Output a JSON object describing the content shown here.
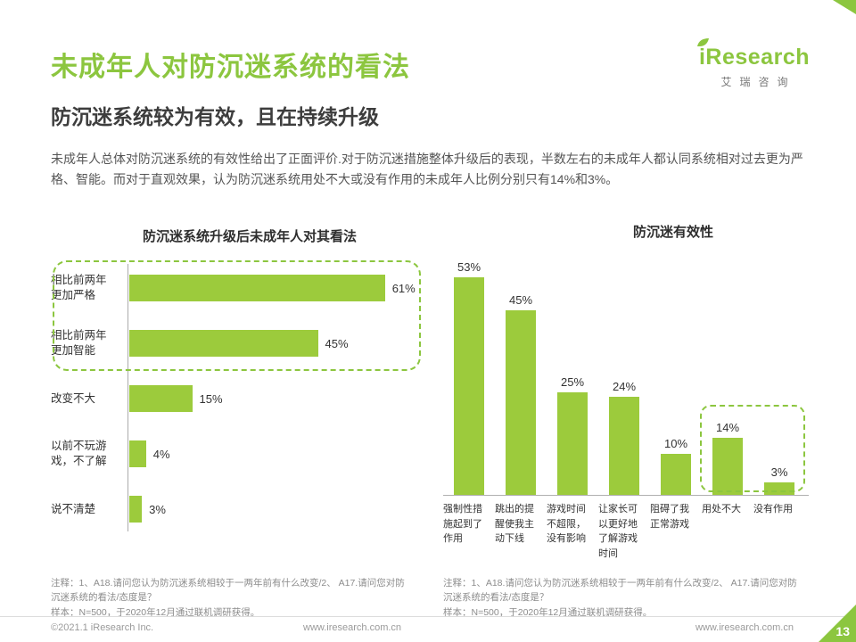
{
  "header": {
    "title": "未成年人对防沉迷系统的看法",
    "subtitle": "防沉迷系统较为有效，且在持续升级",
    "body": "未成年人总体对防沉迷系统的有效性给出了正面评价.对于防沉迷措施整体升级后的表现，半数左右的未成年人都认同系统相对过去更为严格、智能。而对于直观效果，认为防沉迷系统用处不大或没有作用的未成年人比例分别只有14%和3%。"
  },
  "logo": {
    "brand": "iResearch",
    "brand_cn": "艾瑞咨询"
  },
  "colors": {
    "accent": "#8CC63F",
    "bar": "#9CCB3C"
  },
  "chart_data": [
    {
      "type": "bar",
      "orientation": "horizontal",
      "title": "防沉迷系统升级后未成年人对其看法",
      "categories": [
        "相比前两年更加严格",
        "相比前两年更加智能",
        "改变不大",
        "以前不玩游戏，不了解",
        "说不清楚"
      ],
      "values": [
        61,
        45,
        15,
        4,
        3
      ],
      "unit": "%",
      "xlim": [
        0,
        70
      ],
      "highlight_indices": [
        0,
        1
      ],
      "highlight_style": "dashed-box"
    },
    {
      "type": "bar",
      "orientation": "vertical",
      "title": "防沉迷有效性",
      "categories": [
        "强制性措施起到了作用",
        "跳出的提醒使我主动下线",
        "游戏时间不超限，没有影响",
        "让家长可以更好地了解游戏时间",
        "阻碍了我正常游戏",
        "用处不大",
        "没有作用"
      ],
      "values": [
        53,
        45,
        25,
        24,
        10,
        14,
        3
      ],
      "unit": "%",
      "ylim": [
        0,
        60
      ],
      "highlight_indices": [
        5,
        6
      ],
      "highlight_style": "dashed-box"
    }
  ],
  "notes": {
    "question": "注释：1、A18.请问您认为防沉迷系统相较于一两年前有什么改变/2、 A17.请问您对防沉迷系统的看法/态度是？",
    "sample": "样本：N=500，于2020年12月通过联机调研获得。"
  },
  "footer": {
    "copyright": "©2021.1 iResearch Inc.",
    "site_center": "www.iresearch.com.cn",
    "site_right": "www.iresearch.com.cn",
    "page": "13"
  }
}
